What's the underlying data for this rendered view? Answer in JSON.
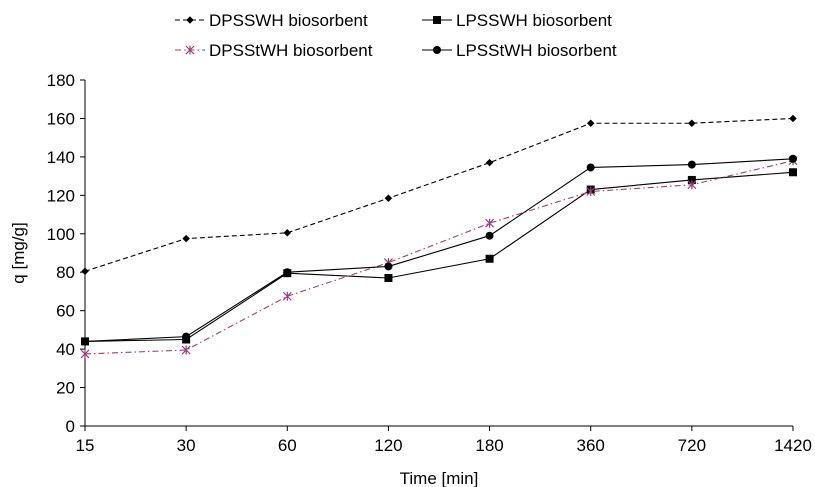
{
  "chart_data": {
    "type": "line",
    "title": "",
    "xlabel": "Time [min]",
    "ylabel": "q [mg/g]",
    "categories": [
      "15",
      "30",
      "60",
      "120",
      "180",
      "360",
      "720",
      "1420"
    ],
    "ylim": [
      0,
      180
    ],
    "yticks": [
      "0",
      "20",
      "40",
      "60",
      "80",
      "100",
      "120",
      "140",
      "160",
      "180"
    ],
    "grid": false,
    "legend_position": "top",
    "series": [
      {
        "name": "DPSSWH biosorbent",
        "values": [
          80.5,
          97.5,
          100.5,
          118.5,
          137,
          157.5,
          157.5,
          160
        ],
        "color": "#000000",
        "dash": "dashed",
        "marker": "diamond"
      },
      {
        "name": "LPSSWH biosorbent",
        "values": [
          44,
          45,
          79.5,
          77,
          87,
          123,
          128,
          132
        ],
        "color": "#000000",
        "dash": "solid",
        "marker": "square"
      },
      {
        "name": "DPSStWH biosorbent",
        "values": [
          37.5,
          39.5,
          67.5,
          85,
          105.5,
          122,
          125.5,
          138
        ],
        "color": "#9e3d7a",
        "dash": "dashdot",
        "marker": "star"
      },
      {
        "name": "LPSStWH biosorbent",
        "values": [
          44,
          46.5,
          80,
          83,
          99,
          134.5,
          136,
          139
        ],
        "color": "#000000",
        "dash": "solid",
        "marker": "circle"
      }
    ]
  }
}
